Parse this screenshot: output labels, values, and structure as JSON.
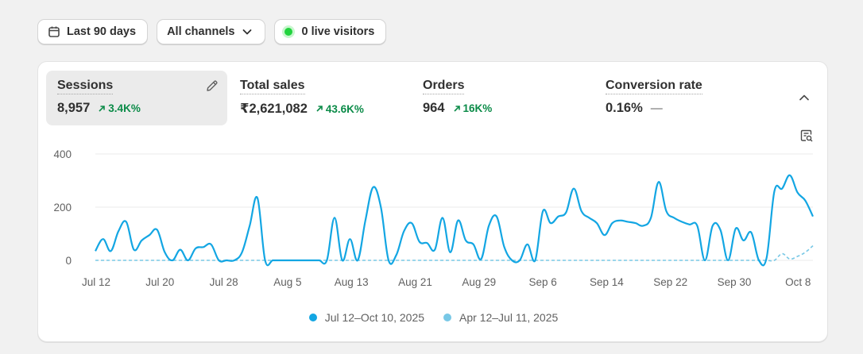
{
  "toolbar": {
    "date_range": "Last 90 days",
    "channels": "All channels",
    "live_visitors": "0 live visitors"
  },
  "metrics": [
    {
      "label": "Sessions",
      "value": "8,957",
      "change": "3.4K%",
      "selected": true
    },
    {
      "label": "Total sales",
      "value": "₹2,621,082",
      "change": "43.6K%"
    },
    {
      "label": "Orders",
      "value": "964",
      "change": "16K%"
    },
    {
      "label": "Conversion rate",
      "value": "0.16%",
      "change": "—"
    }
  ],
  "colors": {
    "current": "#13a6e3",
    "previous": "#78c8e6",
    "positive": "#0b8b48",
    "live": "#22d33e"
  },
  "chart_data": {
    "type": "line",
    "y_ticks": [
      "0",
      "200",
      "400"
    ],
    "ylim": [
      0,
      400
    ],
    "x_ticks": [
      "Jul 12",
      "Jul 20",
      "Jul 28",
      "Aug 5",
      "Aug 13",
      "Aug 21",
      "Aug 29",
      "Sep 6",
      "Sep 14",
      "Sep 22",
      "Sep 30",
      "Oct 8"
    ],
    "grid": true,
    "legend_position": "bottom",
    "series": [
      {
        "name": "Jul 12–Oct 10, 2025",
        "style": "solid",
        "values": [
          35,
          80,
          35,
          110,
          145,
          40,
          75,
          95,
          115,
          30,
          0,
          40,
          0,
          45,
          50,
          60,
          0,
          0,
          0,
          30,
          130,
          235,
          0,
          0,
          0,
          0,
          0,
          0,
          0,
          0,
          0,
          160,
          0,
          80,
          0,
          150,
          275,
          200,
          0,
          20,
          110,
          140,
          70,
          65,
          40,
          160,
          30,
          150,
          75,
          60,
          5,
          130,
          165,
          50,
          0,
          0,
          60,
          0,
          185,
          140,
          165,
          180,
          270,
          185,
          160,
          140,
          95,
          140,
          150,
          145,
          140,
          130,
          160,
          295,
          185,
          160,
          145,
          135,
          130,
          0,
          130,
          115,
          0,
          120,
          75,
          105,
          0,
          10,
          260,
          270,
          320,
          255,
          225,
          165
        ]
      },
      {
        "name": "Apr 12–Jul 11, 2025",
        "style": "dashed",
        "values": [
          0,
          0,
          0,
          0,
          0,
          0,
          0,
          0,
          0,
          0,
          0,
          0,
          0,
          0,
          0,
          0,
          0,
          0,
          0,
          0,
          0,
          0,
          0,
          0,
          0,
          0,
          0,
          0,
          0,
          0,
          0,
          0,
          0,
          0,
          0,
          0,
          0,
          0,
          0,
          0,
          0,
          0,
          0,
          0,
          0,
          0,
          0,
          0,
          0,
          0,
          0,
          0,
          0,
          0,
          0,
          0,
          0,
          0,
          0,
          0,
          0,
          0,
          0,
          0,
          0,
          0,
          0,
          0,
          0,
          0,
          0,
          0,
          0,
          0,
          0,
          0,
          0,
          0,
          0,
          0,
          0,
          0,
          0,
          0,
          0,
          0,
          0,
          0,
          0,
          25,
          5,
          15,
          30,
          55
        ]
      }
    ]
  }
}
